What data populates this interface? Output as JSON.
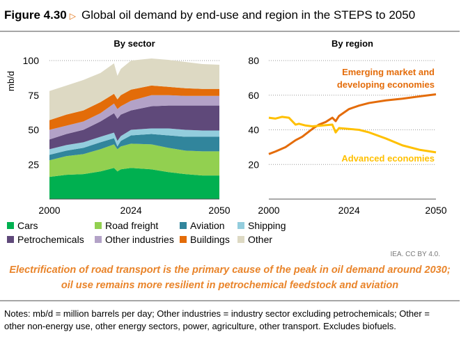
{
  "figure": {
    "number": "Figure 4.30",
    "marker_icon": "triangle-right",
    "title": "Global oil demand by end-use and region in the STEPS to 2050"
  },
  "chart_data": [
    {
      "type": "area",
      "stacked": true,
      "title": "By sector",
      "ylabel": "mb/d",
      "ylim": [
        0,
        100
      ],
      "yticks": [
        25,
        50,
        75,
        100
      ],
      "xticks": [
        2000,
        2024,
        2050
      ],
      "xlim": [
        2000,
        2050
      ],
      "grid": "dotted line at 100 only",
      "x": [
        2000,
        2005,
        2010,
        2015,
        2019,
        2020,
        2021,
        2024,
        2030,
        2035,
        2040,
        2045,
        2050
      ],
      "series": [
        {
          "name": "Cars",
          "color": "#00b050",
          "values": [
            16,
            17.5,
            18,
            20,
            22.5,
            20,
            21.5,
            22.5,
            21.5,
            19.5,
            18,
            17,
            17
          ]
        },
        {
          "name": "Road freight",
          "color": "#92d050",
          "values": [
            12,
            13.5,
            14.5,
            16,
            17,
            16,
            16.5,
            17.5,
            18,
            17.5,
            17,
            17.5,
            17.5
          ]
        },
        {
          "name": "Aviation",
          "color": "#31859c",
          "values": [
            4,
            4,
            4.5,
            5,
            4.5,
            2,
            4,
            6,
            7.5,
            9,
            10,
            10.5,
            10.5
          ]
        },
        {
          "name": "Shipping",
          "color": "#93cddd",
          "values": [
            4,
            4,
            4,
            4,
            4,
            4,
            3.5,
            4,
            4,
            5,
            5,
            4.5,
            4.5
          ]
        },
        {
          "name": "Petrochemicals",
          "color": "#5f497a",
          "values": [
            7,
            8,
            9,
            11,
            14,
            16,
            15.5,
            14,
            16,
            16.5,
            17.5,
            18,
            18
          ]
        },
        {
          "name": "Other industries",
          "color": "#b3a2c7",
          "values": [
            7,
            6,
            6,
            6,
            7,
            7,
            6,
            7,
            8,
            7.5,
            7,
            7,
            7
          ]
        },
        {
          "name": "Buildings",
          "color": "#e36c09",
          "values": [
            7,
            8,
            8,
            8,
            7,
            7,
            8,
            8,
            7,
            6,
            5.5,
            5,
            5
          ]
        },
        {
          "name": "Other",
          "color": "#ddd9c3",
          "values": [
            21,
            21,
            22,
            21,
            22,
            17,
            19,
            21,
            19.5,
            19.5,
            19,
            18,
            17.5
          ]
        }
      ],
      "legend": "bottom"
    },
    {
      "type": "line",
      "title": "By region",
      "ylim": [
        0,
        80
      ],
      "yticks": [
        20,
        40,
        60,
        80
      ],
      "xticks": [
        2000,
        2024,
        2050
      ],
      "xlim": [
        2000,
        2050
      ],
      "grid": "dotted horizontal",
      "series": [
        {
          "name": "Emerging market and developing economies",
          "color": "#e46c0a",
          "x": [
            2000,
            2002,
            2005,
            2008,
            2010,
            2013,
            2015,
            2017,
            2019,
            2020,
            2021,
            2024,
            2027,
            2030,
            2035,
            2040,
            2045,
            2050
          ],
          "values": [
            26,
            27.5,
            30,
            34,
            36,
            40.5,
            43,
            44.5,
            47,
            45,
            48,
            52,
            54,
            55.5,
            57,
            58,
            59.3,
            60.5
          ]
        },
        {
          "name": "Advanced economies",
          "color": "#ffc000",
          "x": [
            2000,
            2002,
            2004,
            2006,
            2008,
            2009,
            2011,
            2013,
            2016,
            2019,
            2020,
            2021,
            2024,
            2027,
            2030,
            2035,
            2040,
            2045,
            2050
          ],
          "values": [
            47,
            46.5,
            47.5,
            47,
            43,
            43.5,
            42.5,
            42,
            42.5,
            43,
            38.5,
            41,
            40.5,
            40,
            38.5,
            35,
            31,
            28.5,
            27
          ]
        }
      ]
    }
  ],
  "source": "IEA. CC BY 4.0.",
  "caption": [
    "Electrification of road transport is the primary cause of the peak in oil demand around 2030;",
    "oil use remains more resilient in petrochemical feedstock and aviation"
  ],
  "notes": [
    "Notes: mb/d = million barrels per day; Other industries = industry sector excluding petrochemicals; Other =",
    "other non-energy use, other energy sectors, power, agriculture, other transport. Excludes biofuels."
  ]
}
